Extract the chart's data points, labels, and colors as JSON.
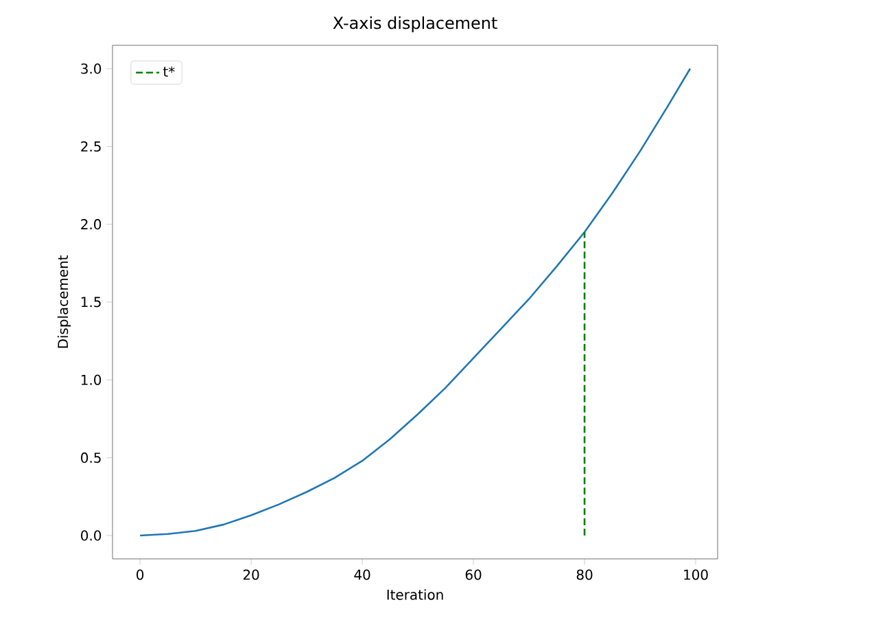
{
  "chart_data": {
    "type": "line",
    "title": "X-axis displacement",
    "xlabel": "Iteration",
    "ylabel": "Displacement",
    "xlim": [
      -4.95,
      103.95
    ],
    "ylim": [
      -0.15,
      3.15
    ],
    "xticks": [
      0,
      20,
      40,
      60,
      80,
      100
    ],
    "yticks": [
      {
        "value": 0,
        "label": "0.0"
      },
      {
        "value": 0.5,
        "label": "0.5"
      },
      {
        "value": 1,
        "label": "1.0"
      },
      {
        "value": 1.5,
        "label": "1.5"
      },
      {
        "value": 2,
        "label": "2.0"
      },
      {
        "value": 2.5,
        "label": "2.5"
      },
      {
        "value": 3,
        "label": "3.0"
      }
    ],
    "legend": "top left",
    "series": [
      {
        "color": "#1f77b4",
        "x": [
          0,
          5,
          10,
          15,
          20,
          25,
          30,
          35,
          40,
          45,
          50,
          55,
          60,
          65,
          70,
          75,
          80,
          85,
          90,
          95,
          99
        ],
        "values": [
          0,
          0.01,
          0.03,
          0.07,
          0.13,
          0.2,
          0.28,
          0.37,
          0.48,
          0.62,
          0.78,
          0.95,
          1.14,
          1.33,
          1.52,
          1.73,
          1.95,
          2.2,
          2.47,
          2.76,
          3.0
        ],
        "line_style": "solid"
      },
      {
        "name": "t*",
        "color": "#008000",
        "x": [
          80,
          80
        ],
        "values": [
          0,
          1.95
        ],
        "line_style": "dashed"
      }
    ]
  }
}
